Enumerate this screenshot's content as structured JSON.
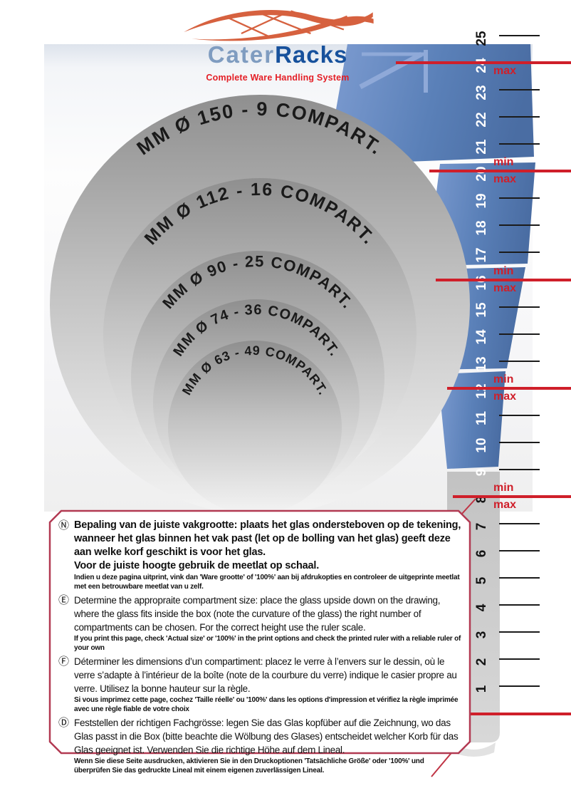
{
  "logo": {
    "brand_part1": "Cater",
    "brand_part2": "Racks",
    "tagline": "Complete Ware Handling System",
    "brand_color_light": "#7f9cc0",
    "brand_color_dark": "#17519c",
    "tagline_color": "#e41e25",
    "swoosh_color": "#d6613f"
  },
  "diagram": {
    "circles": [
      {
        "label": "MM Ø 150 - 9 COMPART.",
        "diameter_mm": 150,
        "compartments": 9
      },
      {
        "label": "MM Ø 112 - 16 COMPART.",
        "diameter_mm": 112,
        "compartments": 16
      },
      {
        "label": "MM Ø 90 - 25 COMPART.",
        "diameter_mm": 90,
        "compartments": 25
      },
      {
        "label": "MM Ø 74 - 36 COMPART.",
        "diameter_mm": 74,
        "compartments": 36
      },
      {
        "label": "MM Ø 63 - 49 COMPART.",
        "diameter_mm": 63,
        "compartments": 49
      }
    ]
  },
  "ruler": {
    "units": [
      1,
      2,
      3,
      4,
      5,
      6,
      7,
      8,
      9,
      10,
      11,
      12,
      13,
      14,
      15,
      16,
      17,
      18,
      19,
      20,
      21,
      22,
      23,
      24,
      25
    ],
    "label_min": "min",
    "label_max": "max",
    "line_color": "#cf1f2a",
    "red_marks": [
      {
        "at": 24,
        "labels": [
          "max"
        ]
      },
      {
        "at": 20,
        "labels": [
          "min",
          "max"
        ]
      },
      {
        "at": 16,
        "labels": [
          "min",
          "max"
        ]
      },
      {
        "at": 12,
        "labels": [
          "min",
          "max"
        ]
      },
      {
        "at": 8,
        "labels": [
          "min",
          "max"
        ]
      },
      {
        "at": 0,
        "labels": []
      }
    ]
  },
  "instructions": {
    "border_color": "#b23a52",
    "sections": [
      {
        "symbol": "Ⓝ",
        "lang": "Dutch",
        "main": "Bepaling van de juiste vakgrootte: plaats het glas ondersteboven op de tekening, wanneer het glas binnen het vak past (let op de bolling van het glas) geeft deze aan welke korf geschikt is voor het glas.",
        "emphasis": "Voor de juiste hoogte gebruik de meetlat op schaal.",
        "fine": "Indien u deze pagina uitprint, vink dan 'Ware grootte' of '100%' aan bij afdrukopties en controleer de uitgeprinte meetlat met een betrouwbare meetlat van u zelf."
      },
      {
        "symbol": "Ⓔ",
        "lang": "English",
        "main": "Determine the appropraite compartment size: place the glass upside down on the drawing, where the glass fits inside the box (note the curvature of the glass) the right number of compartments can be chosen. For the correct height use the ruler scale.",
        "emphasis": "",
        "fine": "If you print this page, check 'Actual size' or '100%' in the print options and check the printed ruler with a reliable ruler of your own"
      },
      {
        "symbol": "Ⓕ",
        "lang": "French",
        "main": "Déterminer les dimensions d’un compartiment: placez le verre à l’envers sur le dessin, où le verre s’adapte à l’intérieur de la boîte (note de la courbure du verre) indique le casier propre au verre. Utilisez la bonne hauteur sur la règle.",
        "emphasis": "",
        "fine": "Si vous imprimez cette page, cochez 'Taille réelle' ou '100%' dans les options d'impression et vérifiez la règle imprimée avec une règle fiable de votre choix"
      },
      {
        "symbol": "Ⓓ",
        "lang": "German",
        "main": "Feststellen der richtigen Fachgrösse: legen Sie das Glas kopfüber auf die Zeichnung, wo das Glas passt in die Box (bitte beachte die Wölbung des Glases) entscheidet welcher Korb für das Glas geeignet ist. Verwenden Sie die richtige Höhe auf dem Lineal.",
        "emphasis": "",
        "fine": "Wenn Sie diese Seite ausdrucken, aktivieren Sie in den Druckoptionen 'Tatsächliche Größe' oder '100%' und überprüfen Sie das gedruckte Lineal mit einem eigenen zuverlässigen Lineal."
      }
    ]
  }
}
